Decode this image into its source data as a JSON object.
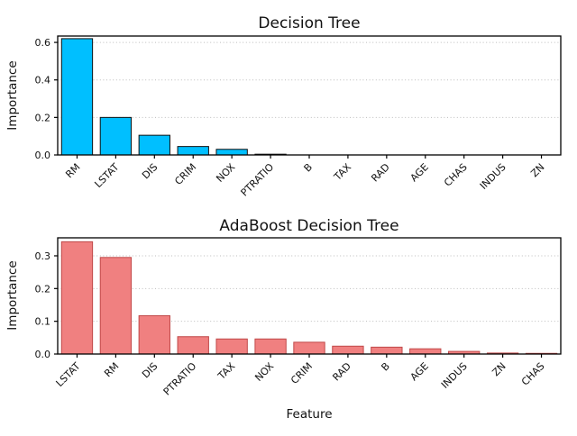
{
  "figure": {
    "background_color": "#ffffff"
  },
  "chart_data": [
    {
      "type": "bar",
      "title": "Decision Tree",
      "xlabel": "",
      "ylabel": "Importance",
      "categories": [
        "RM",
        "LSTAT",
        "DIS",
        "CRIM",
        "NOX",
        "PTRATIO",
        "B",
        "TAX",
        "RAD",
        "AGE",
        "CHAS",
        "INDUS",
        "ZN"
      ],
      "values": [
        0.62,
        0.2,
        0.105,
        0.045,
        0.03,
        0.004,
        0.002,
        0.001,
        0.001,
        0.001,
        0.0005,
        0.0005,
        0.002
      ],
      "ylim": [
        0,
        0.634
      ],
      "yticks": [
        0.0,
        0.2,
        0.4,
        0.6
      ],
      "grid": "dotted-horizontal",
      "legend": "none",
      "tick_label_rotation": 45,
      "bar_color": "#00BFFF",
      "bar_edge_color": "#111111"
    },
    {
      "type": "bar",
      "title": "AdaBoost Decision Tree",
      "xlabel": "Feature",
      "ylabel": "Importance",
      "categories": [
        "LSTAT",
        "RM",
        "DIS",
        "PTRATIO",
        "TAX",
        "NOX",
        "CRIM",
        "RAD",
        "B",
        "AGE",
        "INDUS",
        "ZN",
        "CHAS"
      ],
      "values": [
        0.343,
        0.295,
        0.117,
        0.053,
        0.046,
        0.046,
        0.036,
        0.024,
        0.021,
        0.016,
        0.008,
        0.003,
        0.002
      ],
      "ylim": [
        0,
        0.355
      ],
      "yticks": [
        0.0,
        0.1,
        0.2,
        0.3
      ],
      "grid": "dotted-horizontal",
      "legend": "none",
      "tick_label_rotation": 45,
      "bar_color": "#F08080",
      "bar_edge_color": "#C04848"
    }
  ]
}
